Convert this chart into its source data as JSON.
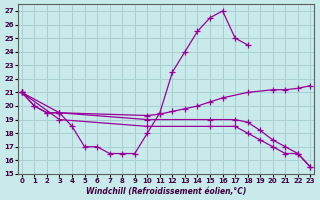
{
  "xlabel": "Windchill (Refroidissement éolien,°C)",
  "bg_color": "#c8eaea",
  "grid_color": "#a8d0d0",
  "line_color": "#990099",
  "ylim": [
    15,
    27.5
  ],
  "xlim": [
    -0.3,
    23.3
  ],
  "yticks": [
    15,
    16,
    17,
    18,
    19,
    20,
    21,
    22,
    23,
    24,
    25,
    26,
    27
  ],
  "xticks": [
    0,
    1,
    2,
    3,
    4,
    5,
    6,
    7,
    8,
    9,
    10,
    11,
    12,
    13,
    14,
    15,
    16,
    17,
    18,
    19,
    20,
    21,
    22,
    23
  ],
  "line1_x": [
    0,
    1,
    2,
    3,
    4,
    5,
    6,
    7,
    8,
    9,
    10,
    11,
    12,
    13,
    14,
    15,
    16,
    17,
    18
  ],
  "line1_y": [
    21,
    20,
    19.5,
    19.5,
    18.5,
    17.0,
    17.0,
    16.5,
    16.5,
    16.5,
    18.0,
    19.5,
    22.5,
    24.0,
    25.5,
    26.5,
    27.0,
    25.0,
    24.5
  ],
  "line2_x": [
    0,
    1,
    2,
    3,
    10,
    11,
    12,
    13,
    14,
    15,
    16,
    18,
    20,
    21,
    22,
    23
  ],
  "line2_y": [
    21.0,
    20.0,
    19.5,
    19.5,
    19.3,
    19.4,
    19.6,
    19.8,
    20.0,
    20.3,
    20.6,
    21.0,
    21.2,
    21.2,
    21.3,
    21.5
  ],
  "line3_x": [
    0,
    3,
    10,
    15,
    17,
    18,
    19,
    20,
    21,
    22,
    23
  ],
  "line3_y": [
    21.0,
    19.5,
    19.0,
    19.0,
    19.0,
    18.8,
    18.2,
    17.5,
    17.0,
    16.5,
    15.5
  ],
  "line4_x": [
    0,
    3,
    10,
    15,
    17,
    18,
    19,
    20,
    21,
    22,
    23
  ],
  "line4_y": [
    21.0,
    19.0,
    18.5,
    18.5,
    18.5,
    18.0,
    17.5,
    17.0,
    16.5,
    16.5,
    15.5
  ]
}
